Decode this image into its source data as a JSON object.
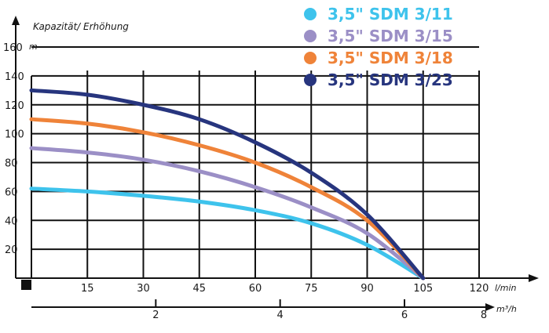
{
  "chart_data": {
    "type": "line",
    "ylabel": "Kapazität/ Erhöhung",
    "yunit": "m",
    "xunit": "l/min",
    "x2unit": "m³/h",
    "xlim": [
      0,
      120
    ],
    "ylim": [
      0,
      160
    ],
    "x_ticks": [
      "15",
      "30",
      "45",
      "60",
      "75",
      "90",
      "105",
      "120"
    ],
    "y_ticks": [
      "20",
      "40",
      "60",
      "80",
      "100",
      "120",
      "140",
      "160"
    ],
    "x2_ticks": [
      "2",
      "4",
      "6",
      "8"
    ],
    "x2_values": [
      2,
      4,
      6,
      8
    ],
    "x2_max": 7.2,
    "grid": true,
    "legend_position": "top-right",
    "series": [
      {
        "name": "3,5\" SDM 3/11",
        "color": "#3ec3ec",
        "x": [
          0,
          15,
          30,
          45,
          60,
          75,
          90,
          105
        ],
        "y": [
          62,
          60,
          57,
          53,
          47,
          38,
          23,
          0
        ]
      },
      {
        "name": "3,5\" SDM 3/15",
        "color": "#9b8fc6",
        "x": [
          0,
          15,
          30,
          45,
          60,
          75,
          90,
          105
        ],
        "y": [
          90,
          87,
          82,
          74,
          63,
          49,
          31,
          0
        ]
      },
      {
        "name": "3,5\" SDM 3/18",
        "color": "#ef8339",
        "x": [
          0,
          15,
          30,
          45,
          60,
          75,
          90,
          105
        ],
        "y": [
          110,
          107,
          101,
          92,
          80,
          63,
          40,
          0
        ]
      },
      {
        "name": "3,5\" SDM 3/23",
        "color": "#27357e",
        "x": [
          0,
          15,
          30,
          45,
          60,
          75,
          90,
          105
        ],
        "y": [
          130,
          127,
          120,
          110,
          94,
          73,
          44,
          0
        ]
      }
    ]
  }
}
